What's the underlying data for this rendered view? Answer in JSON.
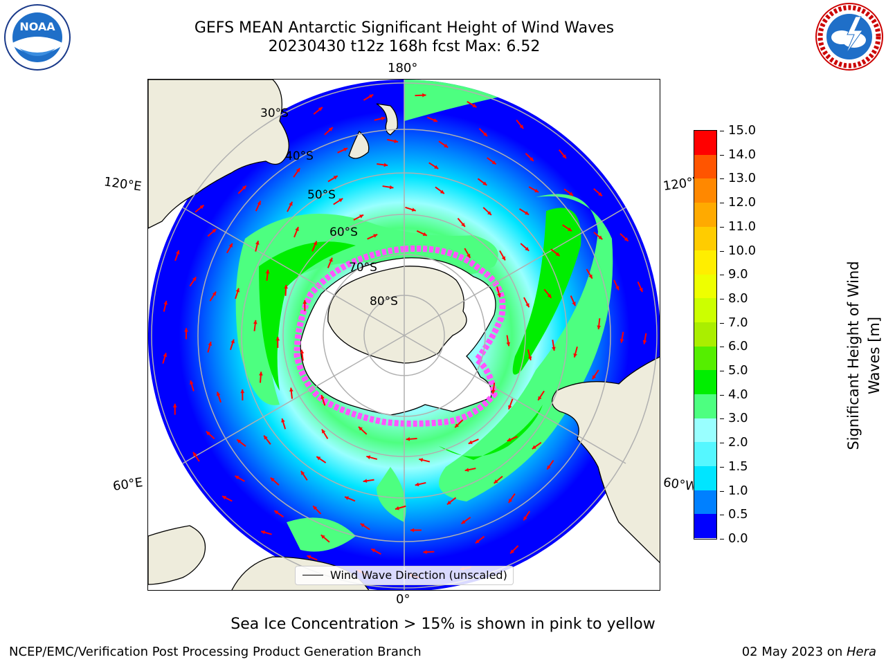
{
  "header": {
    "title_line1": "GEFS MEAN Antarctic Significant Height of Wind Waves",
    "title_line2": "20230430 t12z 168h fcst   Max: 6.52"
  },
  "logos": {
    "left": {
      "name": "NOAA",
      "text": "NOAA",
      "ring_text": "NATIONAL OCEANIC AND ATMOSPHERIC ADMINISTRATION · U.S. DEPARTMENT OF COMMERCE"
    },
    "right": {
      "name": "National Weather Service",
      "ring_text": "NATIONAL WEATHER SERVICE"
    }
  },
  "map": {
    "longitude_labels": {
      "top": "180°",
      "bottom": "0°",
      "upper_left": "120°E",
      "lower_left": "60°E",
      "upper_right": "120°W",
      "lower_right": "60°W"
    },
    "latitude_labels": [
      "30°S",
      "40°S",
      "50°S",
      "60°S",
      "70°S",
      "80°S"
    ],
    "colors": {
      "land": "#eeecdc",
      "ocean_low": "#0000ff",
      "ice_edge": "#ff55ff",
      "arrow": "#ff0000",
      "grid": "#b0b0b0"
    },
    "legend_label": "Wind Wave Direction (unscaled)"
  },
  "colorbar": {
    "label": "Significant Height of Wind Waves [m]",
    "label_line1": "Significant Height of Wind",
    "label_line2": "Waves [m]",
    "ticks": [
      "0.0",
      "0.5",
      "1.0",
      "1.5",
      "2.0",
      "3.0",
      "4.0",
      "5.0",
      "6.0",
      "7.0",
      "8.0",
      "9.0",
      "10.0",
      "11.0",
      "12.0",
      "13.0",
      "14.0",
      "15.0"
    ],
    "colors": [
      "#0000ff",
      "#0080ff",
      "#00e5ff",
      "#55f7ff",
      "#99ffff",
      "#4dff80",
      "#00ee00",
      "#55ee00",
      "#aaee00",
      "#ccff00",
      "#eeff00",
      "#ffee00",
      "#ffcc00",
      "#ffaa00",
      "#ff8800",
      "#ff5500",
      "#ff0000"
    ]
  },
  "note": "Sea Ice Concentration > 15% is shown in pink to yellow",
  "footer": {
    "left": "NCEP/EMC/Verification Post Processing Product Generation Branch",
    "right_prefix": "02 May 2023 on ",
    "right_host": "Hera"
  }
}
